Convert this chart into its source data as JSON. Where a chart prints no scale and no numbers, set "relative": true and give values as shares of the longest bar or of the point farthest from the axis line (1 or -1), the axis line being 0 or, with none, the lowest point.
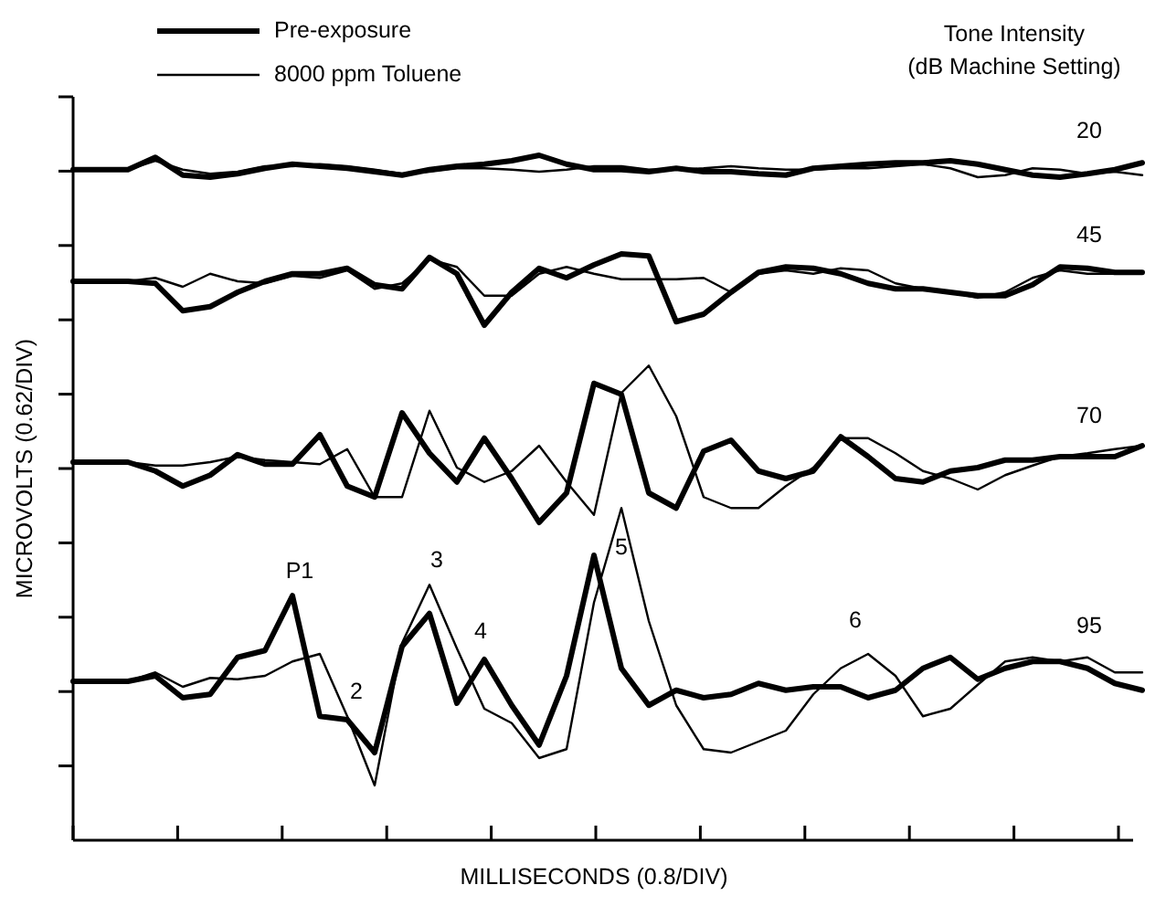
{
  "chart_data": {
    "type": "line",
    "relative": true,
    "xlabel": "MILLISECONDS (0.8/DIV)",
    "ylabel": "MICROVOLTS (0.62/DIV)",
    "legend": "top left",
    "legend_title": "Tone Intensity\n(dB Machine Setting)",
    "categories": [
      null,
      null,
      null,
      null,
      null,
      null,
      null,
      null,
      null,
      null,
      null,
      null,
      null,
      null,
      null,
      null,
      null,
      null,
      null,
      null,
      null,
      null,
      null,
      null,
      null,
      null,
      null,
      null,
      null,
      null,
      null,
      null,
      null,
      null,
      null,
      null,
      null,
      null,
      null,
      null
    ],
    "series": [
      {
        "name": "Pre-exposure",
        "color": "#000000",
        "values": [
          0.979,
          0.979,
          0.979,
          0.997,
          0.971,
          0.968,
          0.973,
          0.981,
          0.987,
          0.984,
          0.981,
          0.976,
          0.971,
          0.979,
          0.984,
          0.987,
          0.992,
          1,
          0.987,
          0.979,
          0.979,
          0.976,
          0.981,
          0.976,
          0.976,
          0.973,
          0.971,
          0.981,
          0.984,
          0.987,
          0.989,
          0.989,
          0.992,
          0.987,
          0.979,
          0.971,
          0.968,
          0.973,
          0.979,
          0.989
        ]
      },
      {
        "name": "8000 ppm Toluene",
        "color": "#000000",
        "values": [
          0.979,
          0.979,
          0.979,
          0.992,
          0.979,
          0.973,
          0.976,
          0.984,
          0.984,
          0.987,
          0.984,
          0.979,
          0.973,
          0.976,
          0.981,
          0.981,
          0.979,
          0.976,
          0.979,
          0.984,
          0.984,
          0.979,
          0.979,
          0.981,
          0.984,
          0.981,
          0.979,
          0.979,
          0.981,
          0.981,
          0.984,
          0.987,
          0.981,
          0.968,
          0.971,
          0.981,
          0.979,
          0.973,
          0.976,
          0.971
        ]
      },
      {
        "color": "#000000",
        "values": [
          0.816,
          0.816,
          0.816,
          0.813,
          0.773,
          0.779,
          0.8,
          0.816,
          0.827,
          0.827,
          0.835,
          0.811,
          0.805,
          0.851,
          0.827,
          0.752,
          0.8,
          0.835,
          0.821,
          0.84,
          0.856,
          0.853,
          0.757,
          0.768,
          0.8,
          0.829,
          0.837,
          0.835,
          0.827,
          0.813,
          0.805,
          0.805,
          0.8,
          0.795,
          0.795,
          0.811,
          0.837,
          0.835,
          0.829,
          0.829
        ]
      },
      {
        "color": "#000000",
        "values": [
          0.816,
          0.816,
          0.816,
          0.821,
          0.808,
          0.827,
          0.816,
          0.813,
          0.824,
          0.821,
          0.832,
          0.805,
          0.813,
          0.848,
          0.837,
          0.795,
          0.795,
          0.827,
          0.837,
          0.827,
          0.819,
          0.819,
          0.819,
          0.821,
          0.8,
          0.827,
          0.832,
          0.827,
          0.835,
          0.832,
          0.813,
          0.805,
          0.8,
          0.792,
          0.8,
          0.821,
          0.832,
          0.827,
          0.827,
          0.827
        ]
      },
      {
        "color": "#000000",
        "values": [
          0.552,
          0.552,
          0.552,
          0.539,
          0.517,
          0.533,
          0.563,
          0.549,
          0.549,
          0.592,
          0.517,
          0.501,
          0.624,
          0.565,
          0.523,
          0.587,
          0.528,
          0.464,
          0.507,
          0.667,
          0.651,
          0.507,
          0.485,
          0.568,
          0.584,
          0.539,
          0.528,
          0.539,
          0.589,
          0.56,
          0.528,
          0.523,
          0.539,
          0.544,
          0.555,
          0.555,
          0.56,
          0.56,
          0.56,
          0.576
        ]
      },
      {
        "color": "#000000",
        "values": [
          0.552,
          0.552,
          0.552,
          0.547,
          0.547,
          0.552,
          0.56,
          0.555,
          0.552,
          0.549,
          0.571,
          0.501,
          0.501,
          0.627,
          0.544,
          0.523,
          0.539,
          0.576,
          0.523,
          0.475,
          0.653,
          0.693,
          0.619,
          0.501,
          0.485,
          0.485,
          0.517,
          0.544,
          0.587,
          0.587,
          0.565,
          0.539,
          0.528,
          0.512,
          0.533,
          0.547,
          0.56,
          0.565,
          0.571,
          0.576
        ]
      },
      {
        "color": "#000000",
        "values": [
          0.232,
          0.232,
          0.232,
          0.24,
          0.208,
          0.213,
          0.267,
          0.277,
          0.357,
          0.181,
          0.176,
          0.128,
          0.283,
          0.331,
          0.2,
          0.264,
          0.197,
          0.139,
          0.24,
          0.416,
          0.251,
          0.197,
          0.219,
          0.208,
          0.213,
          0.229,
          0.219,
          0.224,
          0.224,
          0.208,
          0.219,
          0.251,
          0.267,
          0.235,
          0.251,
          0.261,
          0.261,
          0.251,
          0.229,
          0.219
        ]
      },
      {
        "color": "#000000",
        "values": [
          0.232,
          0.232,
          0.232,
          0.245,
          0.224,
          0.237,
          0.235,
          0.24,
          0.261,
          0.272,
          0.181,
          0.08,
          0.288,
          0.373,
          0.28,
          0.192,
          0.171,
          0.12,
          0.133,
          0.347,
          0.485,
          0.32,
          0.197,
          0.133,
          0.128,
          0.144,
          0.16,
          0.213,
          0.251,
          0.272,
          0.24,
          0.181,
          0.192,
          0.227,
          0.261,
          0.267,
          0.261,
          0.267,
          0.245,
          0.245
        ]
      }
    ],
    "annotations": [
      "20",
      "45",
      "70",
      "95",
      "P1",
      "2",
      "3",
      "4",
      "5",
      "6"
    ]
  }
}
